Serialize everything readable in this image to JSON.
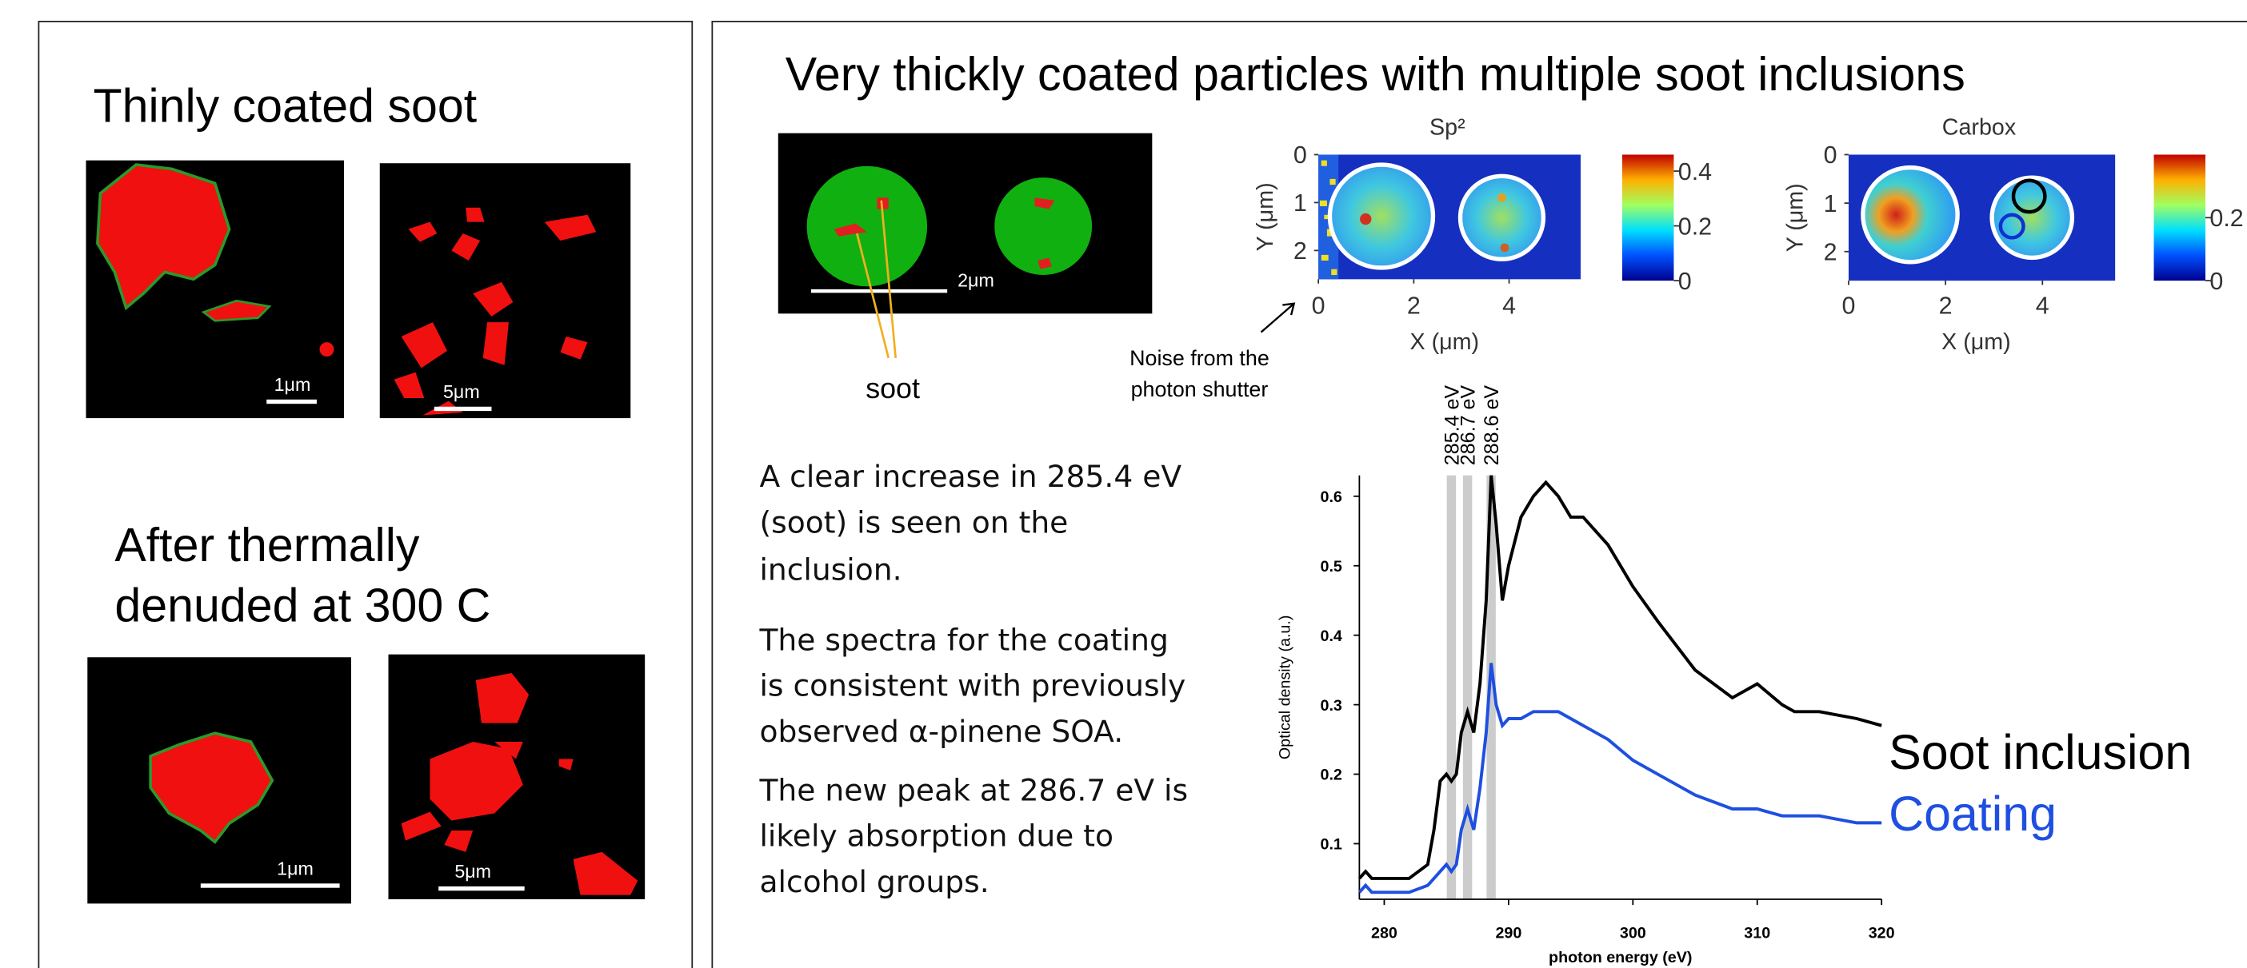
{
  "left_panel": {
    "title1": "Thinly coated soot",
    "top_images": [
      {
        "scale_label": "1μm"
      },
      {
        "scale_label": "5μm"
      }
    ],
    "title2": [
      "After thermally",
      "denuded at 300 C"
    ],
    "bottom_images": [
      {
        "scale_label": "1μm"
      },
      {
        "scale_label": "5μm"
      }
    ]
  },
  "right_panel": {
    "title": "Very thickly coated particles with multiple soot inclusions",
    "particle_image": {
      "scale_label": "2μm",
      "pointer_label": "soot"
    },
    "noise_note": [
      "Noise from the",
      "photon shutter"
    ],
    "maps": [
      {
        "title": "Sp²",
        "xlabel": "X (μm)",
        "ylabel": "Y (μm)",
        "xlim": [
          0,
          5.5
        ],
        "ylim": [
          0,
          2.6
        ],
        "xticks": [
          0,
          2,
          4
        ],
        "yticks": [
          0,
          1,
          2
        ],
        "cbar_lim": [
          0,
          0.46
        ],
        "cbar_ticks": [
          0,
          0.2,
          0.4
        ]
      },
      {
        "title": "Carbox",
        "xlabel": "X (μm)",
        "ylabel": "Y (μm)",
        "xlim": [
          0,
          5.5
        ],
        "ylim": [
          0,
          2.6
        ],
        "xticks": [
          0,
          2,
          4
        ],
        "yticks": [
          0,
          1,
          2
        ],
        "cbar_lim": [
          0,
          0.4
        ],
        "cbar_ticks": [
          0,
          0.2
        ]
      }
    ],
    "paragraphs": [
      [
        "A clear increase in 285.4 eV",
        "(soot) is seen on the",
        "inclusion."
      ],
      [
        "The spectra for the coating",
        "is consistent with previously",
        "observed α-pinene SOA."
      ],
      [
        "The new peak at 286.7 eV is",
        "likely absorption due to",
        "alcohol groups."
      ]
    ]
  },
  "chart_data": {
    "type": "line",
    "xlabel": "photon energy (eV)",
    "ylabel": "Optical density (a.u.)",
    "x": [
      278,
      278.5,
      279,
      280,
      282,
      283.5,
      284,
      284.5,
      285,
      285.4,
      285.8,
      286.2,
      286.7,
      287.2,
      287.7,
      288.2,
      288.6,
      289,
      289.5,
      290,
      291,
      292,
      293,
      294,
      295,
      296,
      298,
      300,
      302,
      305,
      308,
      310,
      312,
      313,
      315,
      318,
      320
    ],
    "series": [
      {
        "name": "Soot inclusion",
        "color": "#000000",
        "values": [
          0.05,
          0.06,
          0.05,
          0.05,
          0.05,
          0.07,
          0.12,
          0.19,
          0.2,
          0.19,
          0.2,
          0.26,
          0.29,
          0.26,
          0.33,
          0.45,
          0.63,
          0.56,
          0.45,
          0.5,
          0.57,
          0.6,
          0.62,
          0.6,
          0.57,
          0.57,
          0.53,
          0.47,
          0.42,
          0.35,
          0.31,
          0.33,
          0.3,
          0.29,
          0.29,
          0.28,
          0.27
        ]
      },
      {
        "name": "Coating",
        "color": "#1f4fe0",
        "values": [
          0.03,
          0.04,
          0.03,
          0.03,
          0.03,
          0.04,
          0.05,
          0.06,
          0.07,
          0.06,
          0.07,
          0.12,
          0.15,
          0.12,
          0.18,
          0.26,
          0.36,
          0.3,
          0.27,
          0.28,
          0.28,
          0.29,
          0.29,
          0.29,
          0.28,
          0.27,
          0.25,
          0.22,
          0.2,
          0.17,
          0.15,
          0.15,
          0.14,
          0.14,
          0.14,
          0.13,
          0.13
        ]
      }
    ],
    "bands": [
      {
        "x": 285.4,
        "label": "285.4 eV"
      },
      {
        "x": 286.7,
        "label": "286.7 eV"
      },
      {
        "x": 288.6,
        "label": "288.6 eV"
      }
    ],
    "xlim": [
      278,
      320
    ],
    "ylim": [
      0.02,
      0.63
    ],
    "xticks": [
      280,
      290,
      300,
      310,
      320
    ],
    "yticks": [
      0.1,
      0.2,
      0.3,
      0.4,
      0.5,
      0.6
    ]
  }
}
